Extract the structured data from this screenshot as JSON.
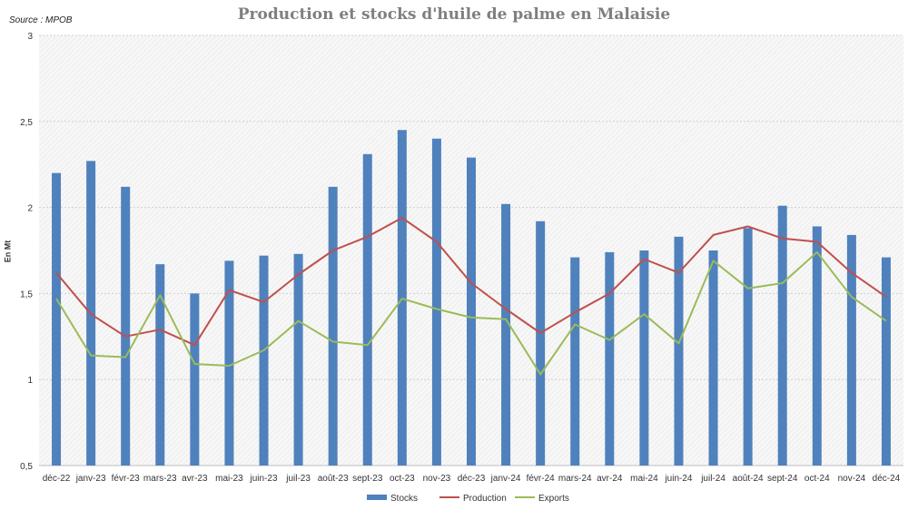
{
  "chart_data": {
    "type": "bar",
    "title": "Production et stocks d'huile de palme en Malaisie",
    "source": "Source : MPOB",
    "ylabel": "En Mt",
    "xlabel": "",
    "ylim": [
      0.5,
      3
    ],
    "yticks": [
      "0,5",
      "1",
      "1,5",
      "2",
      "2,5",
      "3"
    ],
    "ytick_values": [
      0.5,
      1,
      1.5,
      2,
      2.5,
      3
    ],
    "grid": true,
    "legend_position": "bottom",
    "categories": [
      "déc-22",
      "janv-23",
      "févr-23",
      "mars-23",
      "avr-23",
      "mai-23",
      "juin-23",
      "juil-23",
      "août-23",
      "sept-23",
      "oct-23",
      "nov-23",
      "déc-23",
      "janv-24",
      "févr-24",
      "mars-24",
      "avr-24",
      "mai-24",
      "juin-24",
      "juil-24",
      "août-24",
      "sept-24",
      "oct-24",
      "nov-24",
      "déc-24"
    ],
    "series": [
      {
        "name": "Stocks",
        "kind": "bar",
        "color": "#4f81bd",
        "values": [
          2.2,
          2.27,
          2.12,
          1.67,
          1.5,
          1.69,
          1.72,
          1.73,
          2.12,
          2.31,
          2.45,
          2.4,
          2.29,
          2.02,
          1.92,
          1.71,
          1.74,
          1.75,
          1.83,
          1.75,
          1.88,
          2.01,
          1.89,
          1.84,
          1.71
        ]
      },
      {
        "name": "Production",
        "kind": "line",
        "color": "#c0504d",
        "values": [
          1.62,
          1.38,
          1.25,
          1.29,
          1.2,
          1.52,
          1.45,
          1.61,
          1.75,
          1.83,
          1.94,
          1.8,
          1.56,
          1.41,
          1.27,
          1.39,
          1.5,
          1.7,
          1.62,
          1.84,
          1.89,
          1.82,
          1.8,
          1.62,
          1.48
        ]
      },
      {
        "name": "Exports",
        "kind": "line",
        "color": "#9bbb59",
        "values": [
          1.47,
          1.14,
          1.13,
          1.49,
          1.09,
          1.08,
          1.17,
          1.34,
          1.22,
          1.2,
          1.47,
          1.41,
          1.36,
          1.35,
          1.03,
          1.32,
          1.23,
          1.38,
          1.21,
          1.69,
          1.53,
          1.56,
          1.74,
          1.48,
          1.34
        ]
      }
    ]
  }
}
